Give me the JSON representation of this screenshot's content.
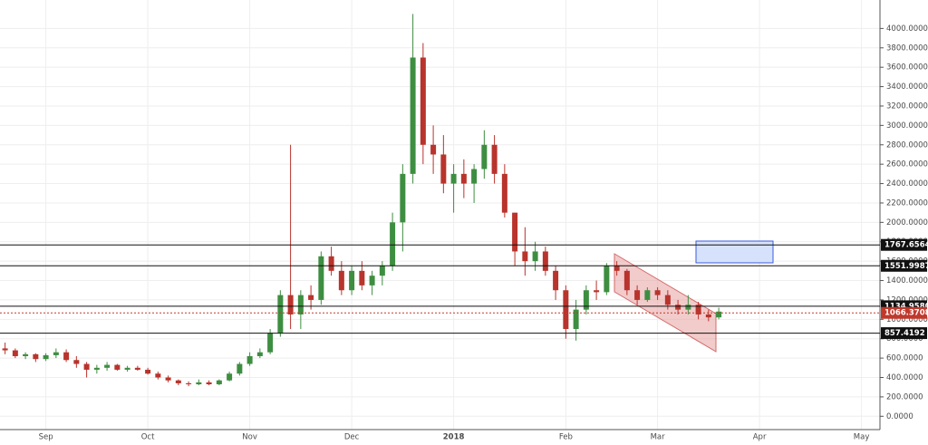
{
  "chart_data": {
    "type": "candlestick",
    "categories": [
      null,
      null,
      null,
      null,
      "Sep",
      null,
      null,
      null,
      null,
      null,
      null,
      null,
      null,
      null,
      "Oct",
      null,
      null,
      null,
      null,
      null,
      null,
      null,
      null,
      null,
      "Nov",
      null,
      null,
      null,
      null,
      null,
      null,
      null,
      null,
      null,
      "Dec",
      null,
      null,
      null,
      null,
      null,
      null,
      null,
      null,
      null,
      "2018",
      null,
      null,
      null,
      null,
      null,
      null,
      null,
      null,
      null,
      null,
      "Feb",
      null,
      null,
      null,
      null,
      null,
      null,
      null,
      null,
      "Mar",
      null,
      null,
      null,
      null,
      null,
      null,
      null,
      null,
      null,
      "Apr",
      null,
      null,
      null,
      null,
      null,
      null,
      null,
      null,
      null,
      "May"
    ],
    "open": [
      700,
      680,
      620,
      640,
      590,
      630,
      660,
      580,
      540,
      480,
      500,
      530,
      480,
      500,
      480,
      440,
      400,
      370,
      340,
      330,
      350,
      330,
      370,
      440,
      540,
      620,
      660,
      860,
      1250,
      1050,
      1250,
      1200,
      1650,
      1500,
      1300,
      1500,
      1350,
      1450,
      1550,
      2000,
      2500,
      3700,
      2800,
      2700,
      2400,
      2500,
      2400,
      2550,
      2800,
      2500,
      2100,
      1700,
      1600,
      1700,
      1500,
      1300,
      900,
      1100,
      1300,
      1280,
      1550,
      1500,
      1300,
      1200,
      1300,
      1250,
      1150,
      1100,
      1150,
      1050,
      1020,
      null,
      null,
      null,
      null,
      null,
      null,
      null,
      null,
      null,
      null,
      null,
      null,
      null,
      null
    ],
    "high": [
      760,
      700,
      660,
      650,
      650,
      700,
      690,
      620,
      560,
      530,
      560,
      540,
      520,
      520,
      500,
      460,
      420,
      380,
      360,
      380,
      370,
      380,
      460,
      560,
      660,
      700,
      900,
      1300,
      2800,
      1300,
      1350,
      1700,
      1750,
      1600,
      1550,
      1600,
      1500,
      1600,
      2100,
      2600,
      4150,
      3850,
      3000,
      2900,
      2600,
      2650,
      2600,
      2950,
      2900,
      2600,
      2100,
      1950,
      1800,
      1750,
      1550,
      1350,
      1200,
      1350,
      1400,
      1580,
      1600,
      1520,
      1350,
      1330,
      1330,
      1300,
      1200,
      1250,
      1180,
      1100,
      1120,
      null,
      null,
      null,
      null,
      null,
      null,
      null,
      null,
      null,
      null,
      null,
      null,
      null,
      null
    ],
    "low": [
      640,
      600,
      590,
      560,
      570,
      600,
      560,
      500,
      400,
      440,
      470,
      470,
      460,
      470,
      430,
      380,
      350,
      320,
      310,
      320,
      320,
      320,
      360,
      420,
      520,
      600,
      640,
      820,
      900,
      900,
      1100,
      1150,
      1450,
      1250,
      1250,
      1300,
      1250,
      1350,
      1500,
      1700,
      2400,
      2600,
      2500,
      2300,
      2100,
      2250,
      2200,
      2450,
      2400,
      2050,
      1550,
      1450,
      1500,
      1450,
      1200,
      800,
      780,
      1050,
      1200,
      1250,
      1450,
      1250,
      1150,
      1180,
      1200,
      1100,
      1050,
      1050,
      1000,
      980,
      1000,
      null,
      null,
      null,
      null,
      null,
      null,
      null,
      null,
      null,
      null,
      null,
      null,
      null,
      null
    ],
    "close": [
      680,
      620,
      640,
      590,
      630,
      660,
      580,
      540,
      480,
      500,
      530,
      480,
      500,
      480,
      440,
      400,
      370,
      340,
      330,
      350,
      330,
      370,
      440,
      540,
      620,
      660,
      860,
      1250,
      1050,
      1250,
      1200,
      1650,
      1500,
      1300,
      1500,
      1350,
      1450,
      1550,
      2000,
      2500,
      3700,
      2800,
      2700,
      2400,
      2500,
      2400,
      2550,
      2800,
      2500,
      2100,
      1700,
      1600,
      1700,
      1500,
      1300,
      900,
      1100,
      1300,
      1280,
      1550,
      1500,
      1300,
      1200,
      1300,
      1250,
      1150,
      1100,
      1150,
      1050,
      1020,
      1080,
      null,
      null,
      null,
      null,
      null,
      null,
      null,
      null,
      null,
      null,
      null,
      null,
      null,
      null
    ],
    "up_color": "#3e8e41",
    "down_color": "#b8342c",
    "ylim": [
      -100,
      4200
    ],
    "yticks": [
      {
        "value": 0,
        "label": "0.0000"
      },
      {
        "value": 200,
        "label": "200.0000"
      },
      {
        "value": 400,
        "label": "400.0000"
      },
      {
        "value": 600,
        "label": "600.0000"
      },
      {
        "value": 800,
        "label": "800.0000"
      },
      {
        "value": 1000,
        "label": "1000.0000"
      },
      {
        "value": 1200,
        "label": "1200.0000"
      },
      {
        "value": 1400,
        "label": "1400.0000"
      },
      {
        "value": 1600,
        "label": "1600.0000"
      },
      {
        "value": 1800,
        "label": "1800.0000"
      },
      {
        "value": 2000,
        "label": "2000.0000"
      },
      {
        "value": 2200,
        "label": "2200.0000"
      },
      {
        "value": 2400,
        "label": "2400.0000"
      },
      {
        "value": 2600,
        "label": "2600.0000"
      },
      {
        "value": 2800,
        "label": "2800.0000"
      },
      {
        "value": 3000,
        "label": "3000.0000"
      },
      {
        "value": 3200,
        "label": "3200.0000"
      },
      {
        "value": 3400,
        "label": "3400.0000"
      },
      {
        "value": 3600,
        "label": "3600.0000"
      },
      {
        "value": 3800,
        "label": "3800.0000"
      },
      {
        "value": 4000,
        "label": "4000.0000"
      }
    ],
    "grid": true,
    "levels": [
      1767.6564,
      1551.9987,
      {
        "value": 1134.958,
        "label": "1134.9580"
      },
      857.4192
    ],
    "last_price": 1066.3708,
    "last_price_color": "#c0392b"
  }
}
